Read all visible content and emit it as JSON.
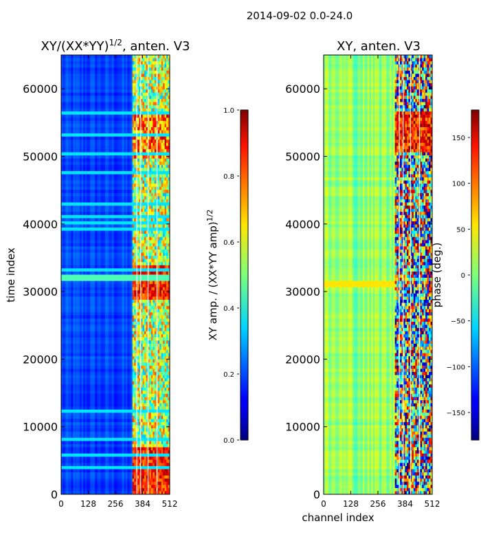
{
  "figure": {
    "suptitle": "2014-09-02 0.0-24.0"
  },
  "chart_data": [
    {
      "type": "heatmap",
      "title": "XY/(XX*YY)",
      "title_superscript": "1/2",
      "title_suffix": ", anten. V3",
      "xlabel": "",
      "ylabel": "time index",
      "xlim": [
        0,
        512
      ],
      "ylim": [
        0,
        65000
      ],
      "xticks": [
        0,
        128,
        256,
        384,
        512
      ],
      "yticks": [
        0,
        10000,
        20000,
        30000,
        40000,
        50000,
        60000
      ],
      "colormap": "jet",
      "colorbar": {
        "label": "XY amp. / (XX*YY amp)",
        "label_superscript": "1/2",
        "range": [
          0.0,
          1.0
        ],
        "ticks": [
          0.0,
          0.2,
          0.4,
          0.6,
          0.8,
          1.0
        ],
        "tick_labels": [
          "0.0",
          "0.2",
          "0.4",
          "0.6",
          "0.8",
          "1.0"
        ]
      }
    },
    {
      "type": "heatmap",
      "title": "XY, anten. V3",
      "xlabel": "channel index",
      "ylabel": "",
      "xlim": [
        0,
        512
      ],
      "ylim": [
        0,
        65000
      ],
      "xticks": [
        0,
        128,
        256,
        384,
        512
      ],
      "yticks": [
        0,
        10000,
        20000,
        30000,
        40000,
        50000,
        60000
      ],
      "colormap": "jet",
      "colorbar": {
        "label": "phase (deg.)",
        "range": [
          -180,
          180
        ],
        "ticks": [
          -150,
          -100,
          -50,
          0,
          50,
          100,
          150
        ],
        "tick_labels": [
          "−150",
          "−100",
          "−50",
          "0",
          "50",
          "100",
          "150"
        ]
      }
    }
  ]
}
